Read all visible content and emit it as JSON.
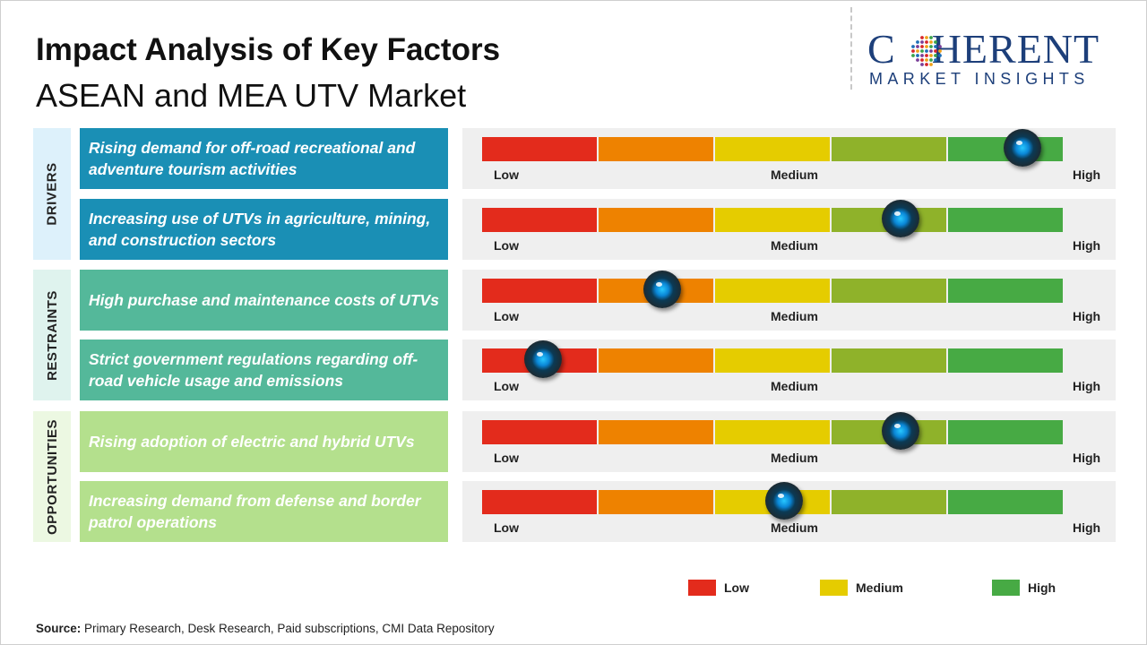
{
  "title": "Impact Analysis of Key Factors",
  "subtitle": "ASEAN and MEA UTV Market",
  "logo": {
    "word_left": "C",
    "word_right": "HERENT",
    "tagline": "MARKET INSIGHTS"
  },
  "colors": {
    "low": "#e32b1c",
    "low_mid": "#ee8200",
    "medium": "#e5cc00",
    "mid_high": "#8fb22a",
    "high": "#47aa44",
    "drivers": "#1a8fb5",
    "restraints": "#54b89a",
    "opportunities": "#b4e08d",
    "drivers_cat": "#ddf1fb",
    "restraints_cat": "#dff3ee",
    "opportunities_cat": "#ecf8e2"
  },
  "categories": [
    {
      "key": "drivers",
      "label": "DRIVERS"
    },
    {
      "key": "restraints",
      "label": "RESTRAINTS"
    },
    {
      "key": "opportunities",
      "label": "OPPORTUNITIES"
    }
  ],
  "scale_labels": {
    "low": "Low",
    "medium": "Medium",
    "high": "High"
  },
  "chart_data": {
    "type": "bar",
    "scale": [
      "Low",
      "Medium",
      "High"
    ],
    "ylim": [
      0,
      1
    ],
    "factors": [
      {
        "category": "DRIVERS",
        "label": "Rising demand for off-road recreational and adventure tourism activities",
        "impact": 0.93
      },
      {
        "category": "DRIVERS",
        "label": "Increasing use of UTVs in agriculture, mining, and construction sectors",
        "impact": 0.72
      },
      {
        "category": "RESTRAINTS",
        "label": "High purchase and maintenance costs of UTVs",
        "impact": 0.31
      },
      {
        "category": "RESTRAINTS",
        "label": "Strict government regulations regarding off-road vehicle usage and emissions",
        "impact": 0.105
      },
      {
        "category": "OPPORTUNITIES",
        "label": "Rising adoption of electric and hybrid UTVs",
        "impact": 0.72
      },
      {
        "category": "OPPORTUNITIES",
        "label": "Increasing demand from defense and border patrol operations",
        "impact": 0.52
      }
    ]
  },
  "legend": [
    {
      "label": "Low",
      "color": "#e32b1c"
    },
    {
      "label": "Medium",
      "color": "#e5cc00"
    },
    {
      "label": "High",
      "color": "#47aa44"
    }
  ],
  "source": {
    "label": "Source:",
    "text": " Primary Research, Desk Research, Paid subscriptions, CMI Data Repository"
  }
}
